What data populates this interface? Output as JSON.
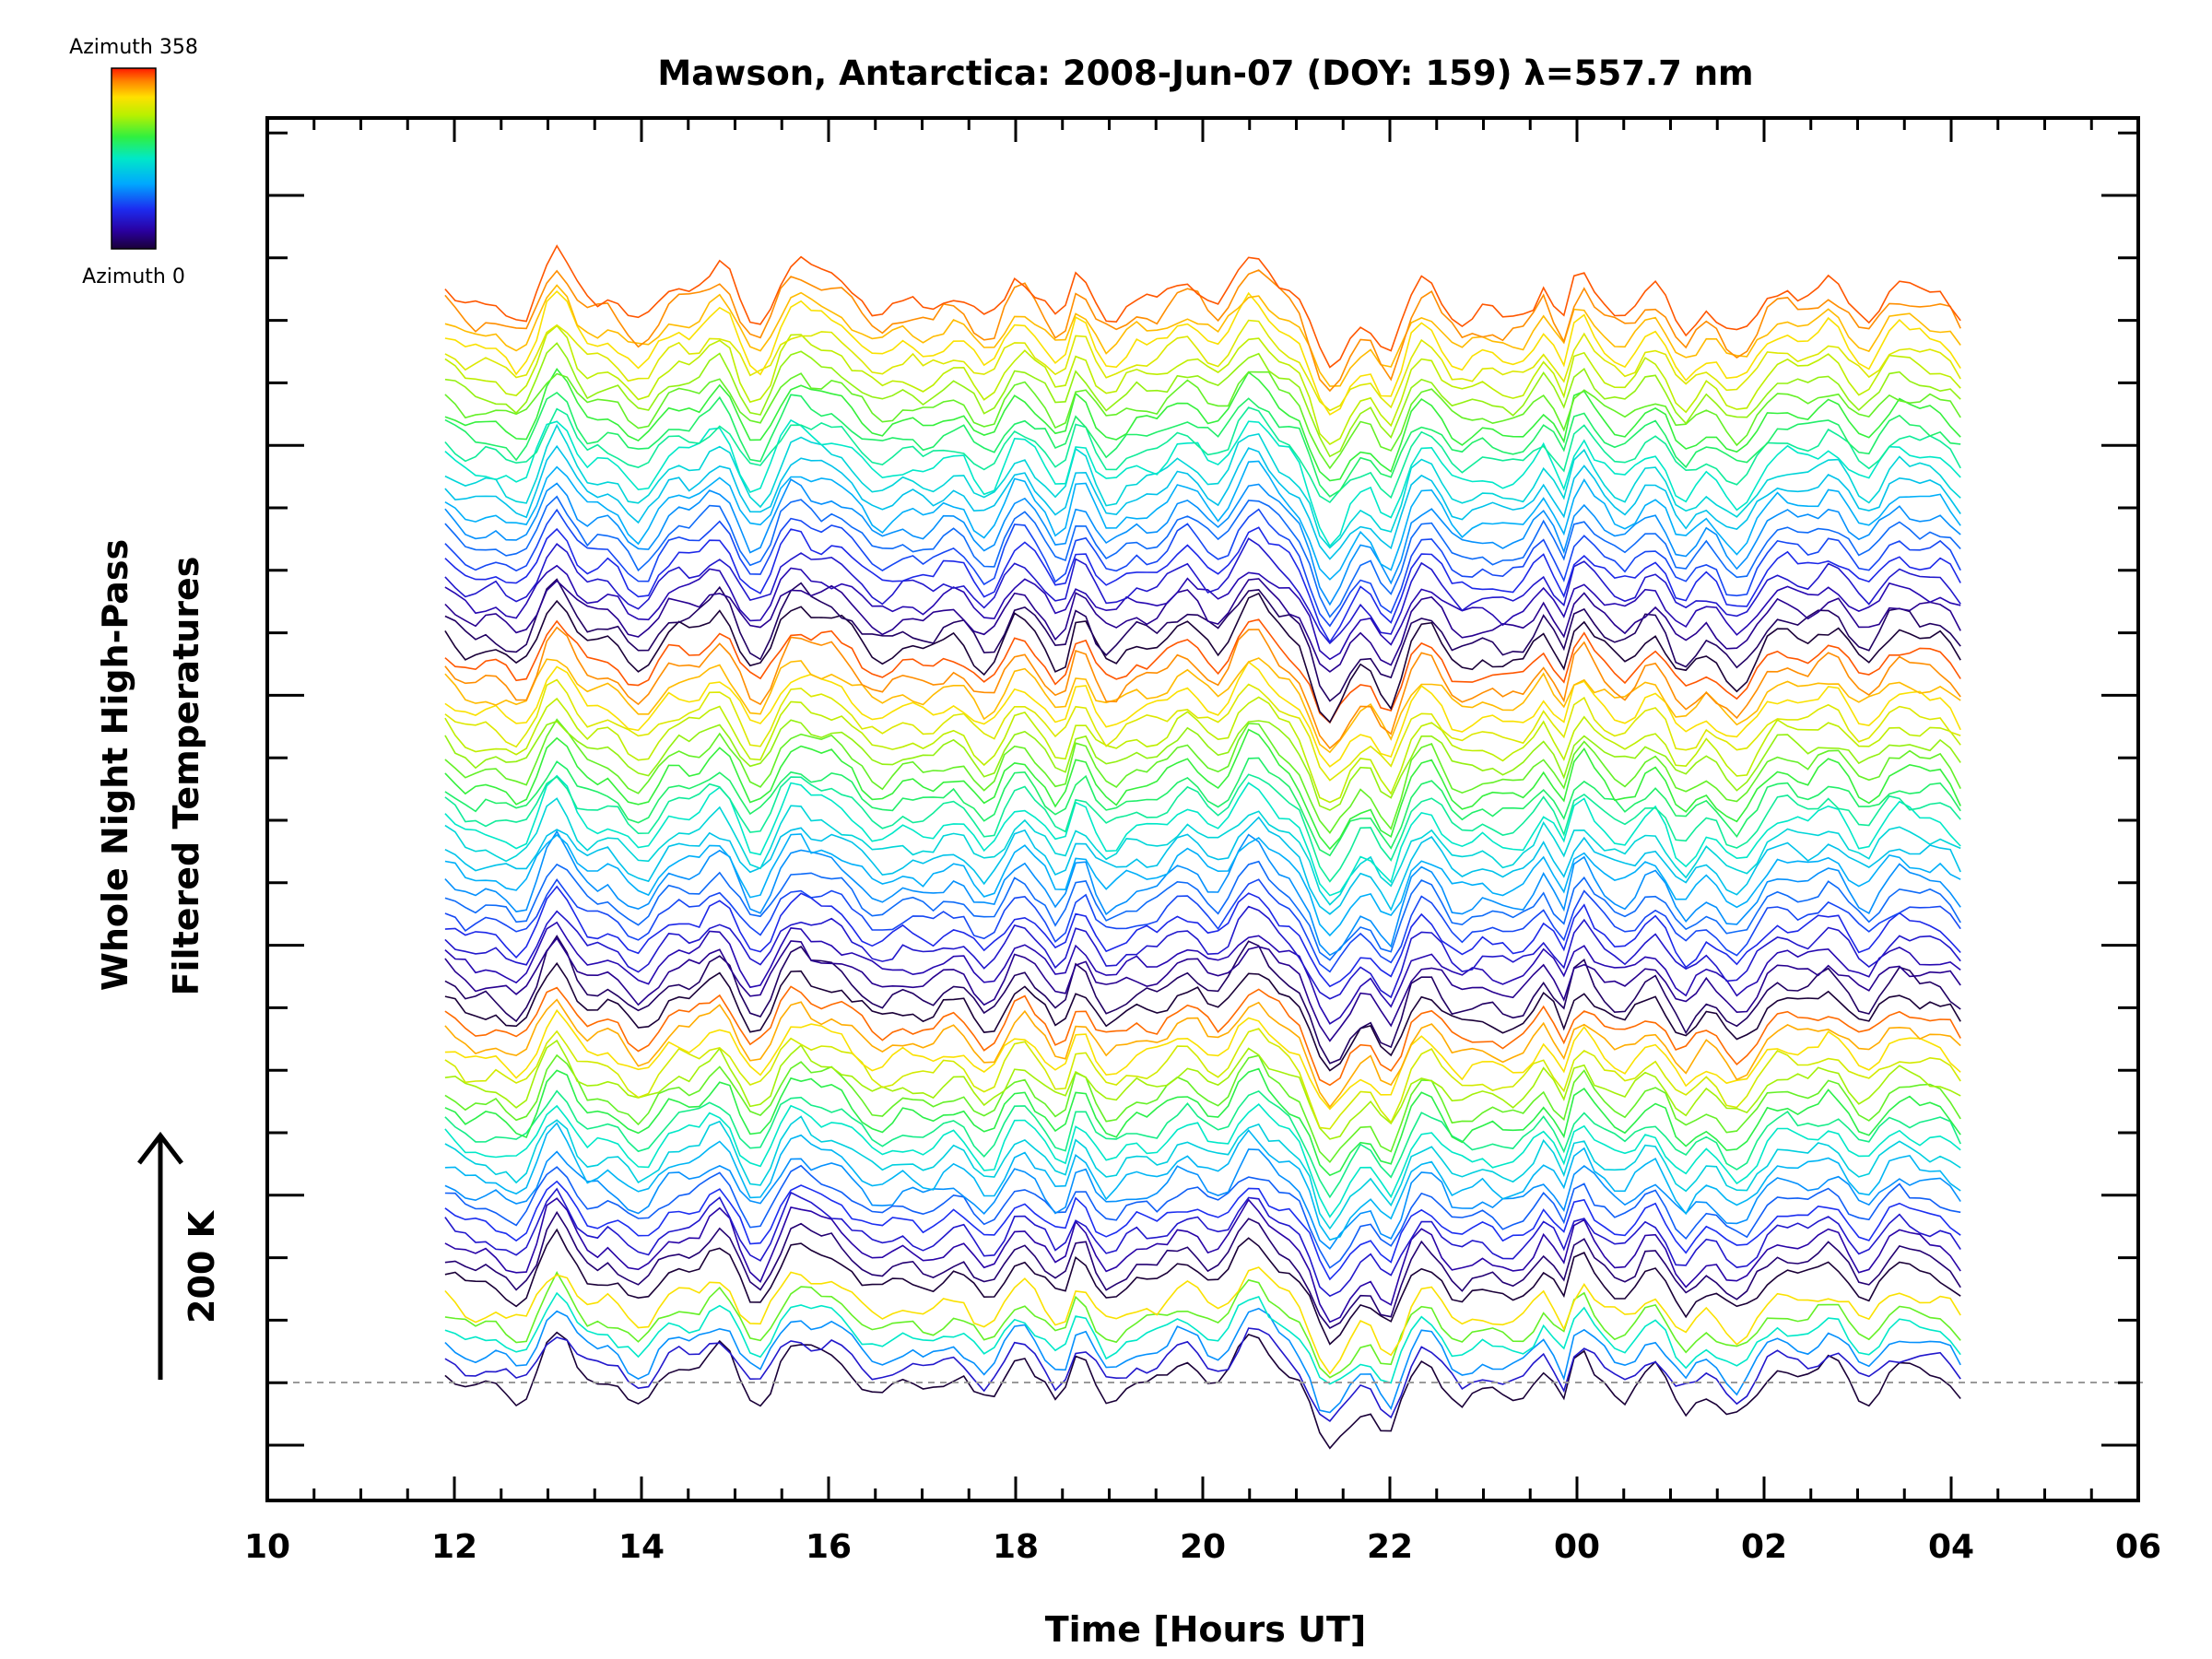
{
  "chart_data": {
    "type": "line",
    "title": "Mawson, Antarctica: 2008-Jun-07 (DOY: 159) λ=557.7 nm",
    "xlabel": "Time [Hours UT]",
    "ylabel": [
      "Whole Night High-Pass",
      "Filtered Temperatures"
    ],
    "scale_bar_label": "200 K",
    "colorbar": {
      "top_label": "Azimuth  358",
      "bottom_label": "Azimuth  0",
      "colormap": "rainbow (violet/black at 0 to red at 358)"
    },
    "x_tick_labels": [
      "10",
      "12",
      "14",
      "16",
      "18",
      "20",
      "22",
      "00",
      "02",
      "04",
      "06"
    ],
    "xlim_hours_ut": [
      10,
      30
    ],
    "data_time_range_hours_ut": [
      11.9,
      28.1
    ],
    "baseline_reference": "dashed gray line at zero of first trace",
    "series_count": 72,
    "series_description": "Stacked filtered temperature traces, one per zenith-angle/azimuth viewing direction, each offset vertically and colored by azimuth (0–358).",
    "grid": false,
    "legend": "colorbar top-left"
  },
  "colors": {
    "axis": "#000000",
    "baseline": "#9a9a9a"
  }
}
